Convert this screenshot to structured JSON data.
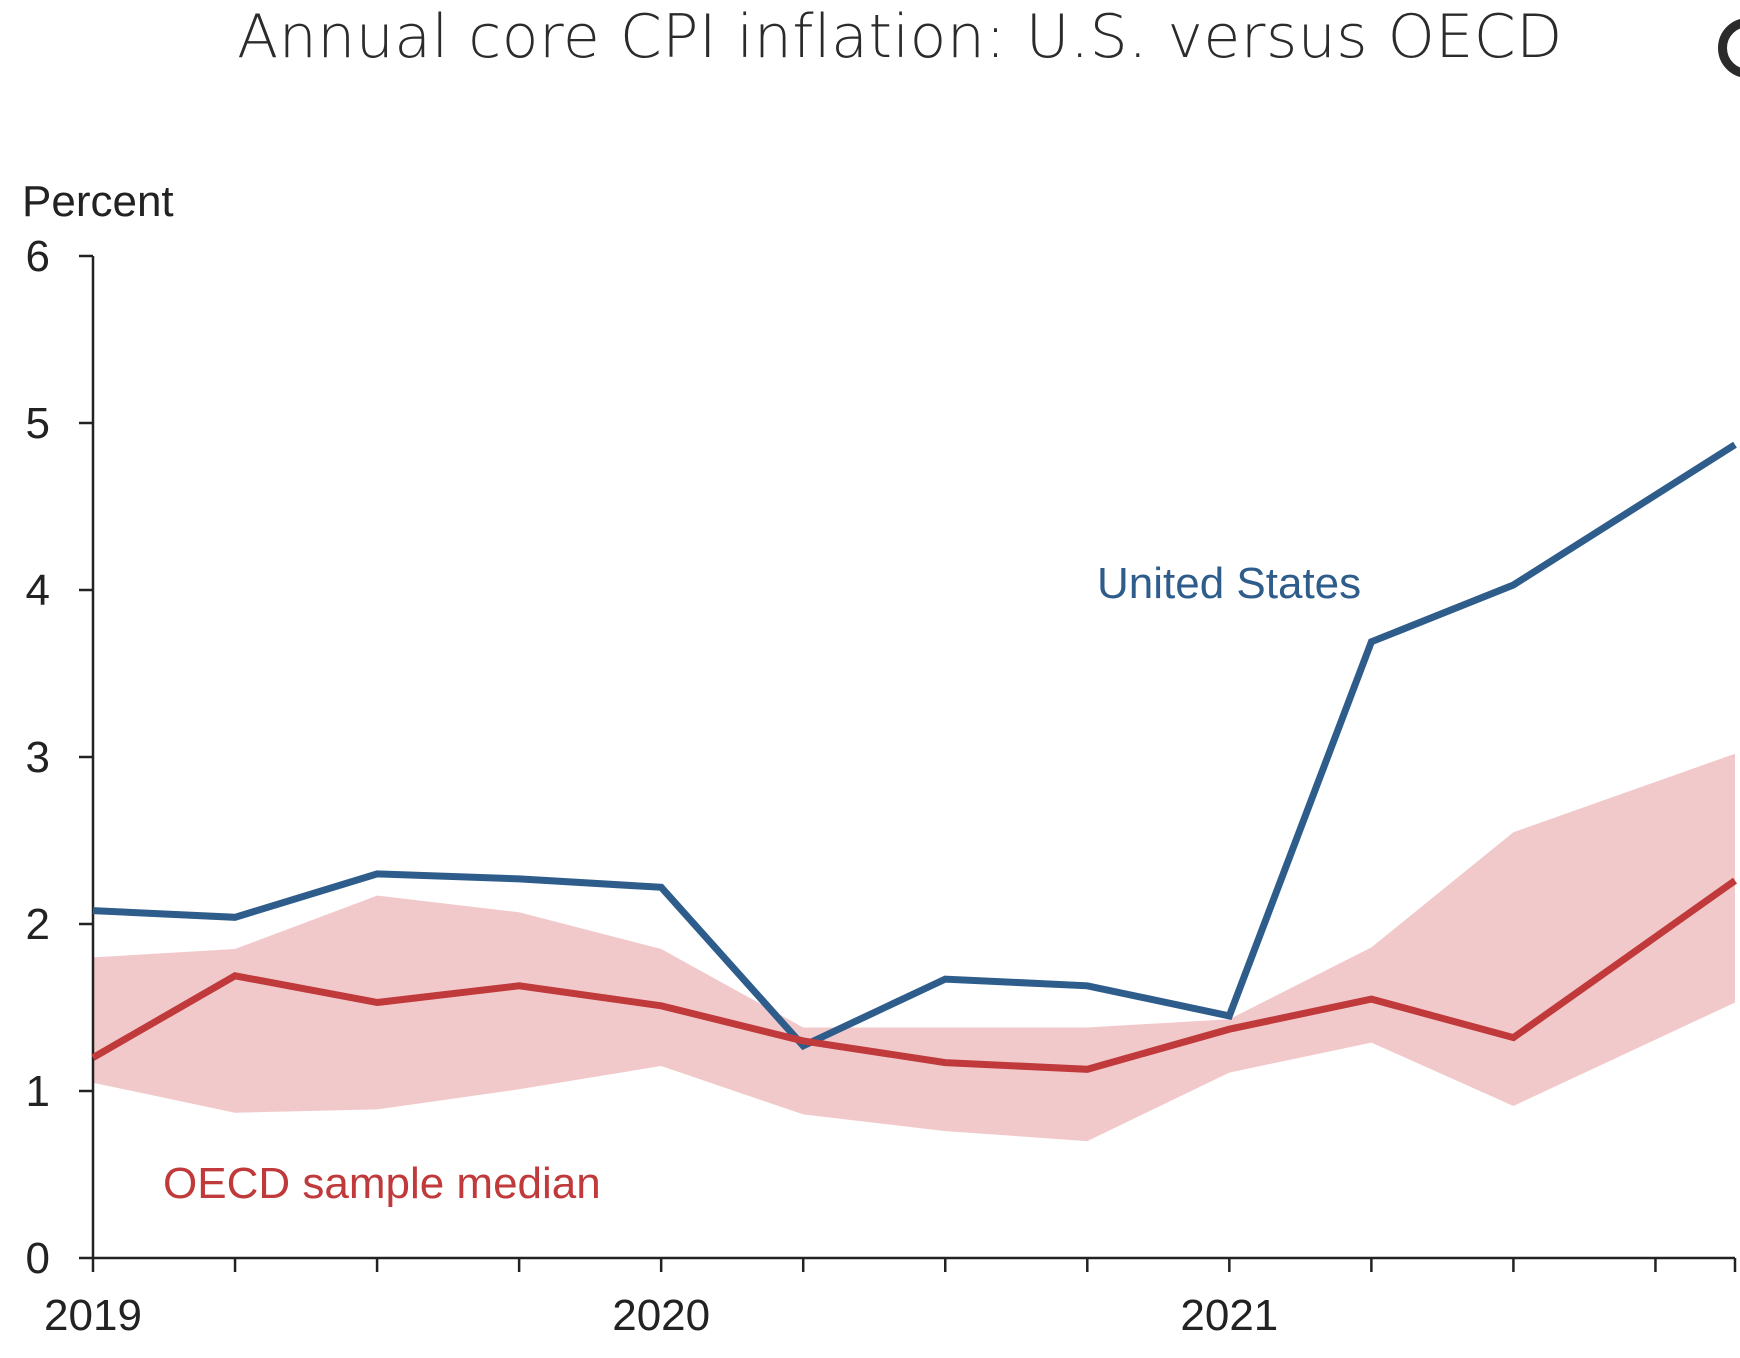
{
  "chart_data": {
    "type": "line",
    "title": "Annual core CPI inflation: U.S. versus OECD",
    "ylabel": "Percent",
    "xlabel": "",
    "ylim": [
      0,
      6
    ],
    "y_ticks": [
      "0",
      "1",
      "2",
      "3",
      "4",
      "5",
      "6"
    ],
    "x_ticks": [
      "2019",
      "2020",
      "2021"
    ],
    "x_range": [
      2019.0,
      2021.89
    ],
    "grid": false,
    "x": [
      2019.0,
      2019.25,
      2019.5,
      2019.75,
      2020.0,
      2020.25,
      2020.5,
      2020.75,
      2021.0,
      2021.25,
      2021.5,
      2021.75,
      2021.89
    ],
    "series": [
      {
        "name": "United States",
        "color": "#2e5d8c",
        "values": [
          2.08,
          2.04,
          2.3,
          2.27,
          2.22,
          1.27,
          1.67,
          1.63,
          1.45,
          3.69,
          4.03,
          null,
          4.87
        ]
      },
      {
        "name": "OECD sample median",
        "color": "#c0393b",
        "values": [
          1.2,
          1.69,
          1.53,
          1.63,
          1.51,
          1.3,
          1.17,
          1.13,
          1.37,
          1.55,
          1.32,
          null,
          2.26
        ]
      }
    ],
    "band": {
      "color": "#f2c9ca",
      "upper": [
        1.8,
        1.85,
        2.17,
        2.07,
        1.85,
        1.38,
        1.38,
        1.38,
        1.43,
        1.86,
        2.55,
        null,
        3.02
      ],
      "lower": [
        1.05,
        0.87,
        0.89,
        1.01,
        1.15,
        0.86,
        0.76,
        0.7,
        1.11,
        1.29,
        0.91,
        null,
        1.53
      ]
    }
  }
}
